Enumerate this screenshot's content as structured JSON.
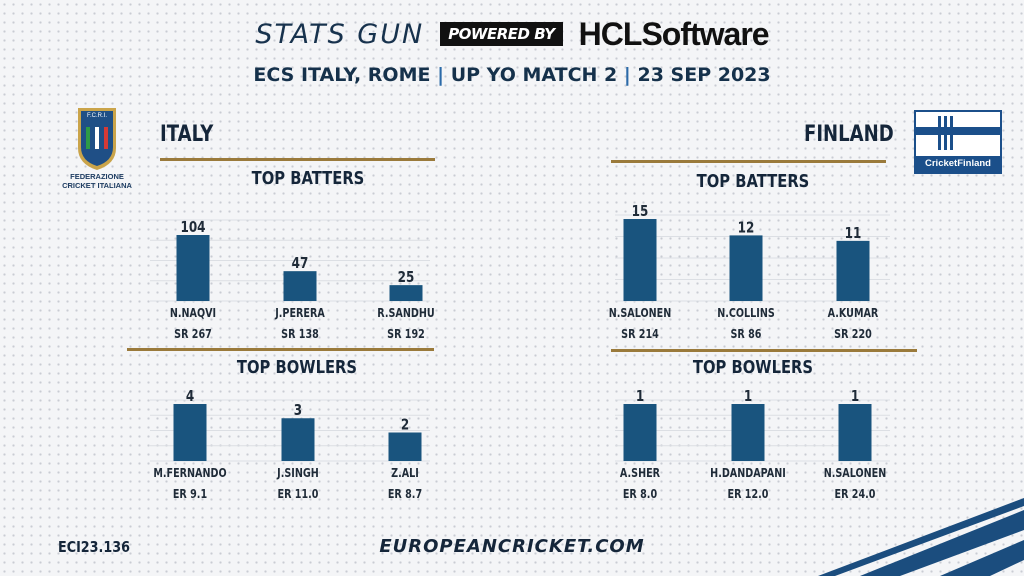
{
  "header": {
    "brand": "STATS GUN",
    "powered_by": "POWERED BY",
    "sponsor": "HCLSoftware",
    "match_parts": [
      "ECS ITALY, ROME",
      "UP YO MATCH 2",
      "23 SEP 2023"
    ],
    "separator": "|"
  },
  "logos": {
    "italy_badge_text": "F.C.R.I.",
    "italy_caption_line1": "FEDERAZIONE",
    "italy_caption_line2": "CRICKET ITALIANA",
    "finland_caption": "CricketFinland"
  },
  "teams": {
    "italy": {
      "name": "ITALY",
      "batters_title": "TOP BATTERS",
      "bowlers_title": "TOP BOWLERS"
    },
    "finland": {
      "name": "FINLAND",
      "batters_title": "TOP BATTERS",
      "bowlers_title": "TOP BOWLERS"
    }
  },
  "colors": {
    "bar": "#19547e",
    "gold": "#9a7a3b",
    "navy": "#15263a"
  },
  "chart_data": [
    {
      "type": "bar",
      "team": "ITALY",
      "metric": "runs",
      "categories": [
        "N.NAQVI",
        "J.PERERA",
        "R.SANDHU"
      ],
      "values": [
        104,
        47,
        25
      ],
      "sublabels": [
        "SR 267",
        "SR 138",
        "SR 192"
      ],
      "ylim": [
        0,
        104
      ]
    },
    {
      "type": "bar",
      "team": "ITALY",
      "metric": "wickets",
      "categories": [
        "M.FERNANDO",
        "J.SINGH",
        "Z.ALI"
      ],
      "values": [
        4,
        3,
        2
      ],
      "sublabels": [
        "ER 9.1",
        "ER 11.0",
        "ER 8.7"
      ],
      "ylim": [
        0,
        4
      ]
    },
    {
      "type": "bar",
      "team": "FINLAND",
      "metric": "runs",
      "categories": [
        "N.SALONEN",
        "N.COLLINS",
        "A.KUMAR"
      ],
      "values": [
        15,
        12,
        11
      ],
      "sublabels": [
        "SR 214",
        "SR 86",
        "SR 220"
      ],
      "ylim": [
        0,
        15
      ]
    },
    {
      "type": "bar",
      "team": "FINLAND",
      "metric": "wickets",
      "categories": [
        "A.SHER",
        "H.DANDAPANI",
        "N.SALONEN"
      ],
      "values": [
        1,
        1,
        1
      ],
      "sublabels": [
        "ER 8.0",
        "ER 12.0",
        "ER 24.0"
      ],
      "ylim": [
        0,
        1
      ]
    }
  ],
  "footer": {
    "code": "ECI23.136",
    "site": "EUROPEANCRICKET.COM"
  }
}
